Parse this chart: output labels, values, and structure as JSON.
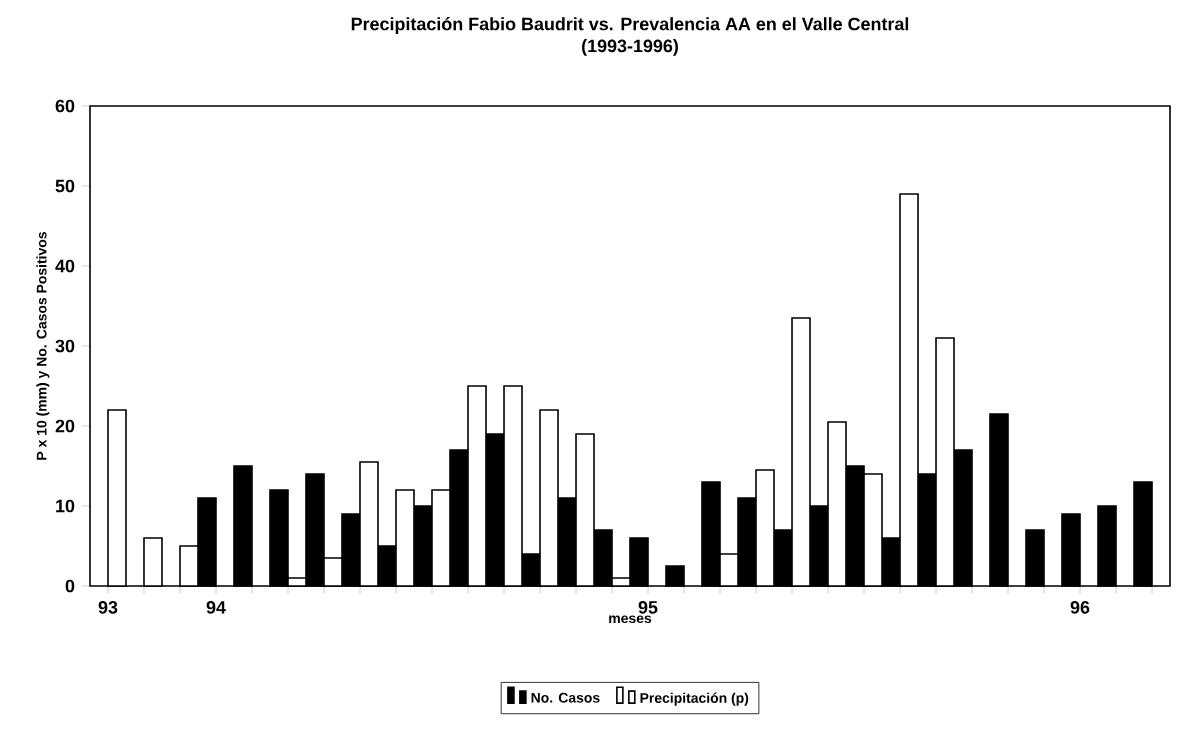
{
  "chart_data": {
    "type": "bar",
    "title": "Precipitación Fabio Baudrit vs. Prevalencia AA en el Valle Central",
    "subtitle": "(1993-1996)",
    "xlabel": "meses",
    "ylabel": "P x 10 (mm) y No. Casos Positivos",
    "categories": [
      "93",
      null,
      null,
      "94",
      null,
      null,
      null,
      null,
      null,
      null,
      null,
      null,
      null,
      null,
      null,
      "95",
      null,
      null,
      null,
      null,
      null,
      null,
      null,
      null,
      null,
      null,
      null,
      "96",
      null,
      null
    ],
    "series": [
      {
        "name": "No. Casos",
        "color": "#000000",
        "values": [
          null,
          null,
          null,
          11,
          15,
          12,
          14,
          9,
          5,
          10,
          17,
          19,
          4,
          11,
          7,
          6,
          2.5,
          13,
          11,
          7,
          10,
          15,
          6,
          14,
          17,
          21.5,
          7,
          9,
          10,
          13
        ]
      },
      {
        "name": "Precipitación (p)",
        "color": "#ffffff",
        "values": [
          22,
          6,
          5,
          null,
          null,
          1,
          3.5,
          15.5,
          12,
          12,
          25,
          25,
          22,
          19,
          1,
          null,
          null,
          4,
          14.5,
          33.5,
          20.5,
          14,
          49,
          31,
          null,
          null,
          null,
          null,
          null,
          null
        ]
      }
    ],
    "ylim": [
      0,
      60
    ],
    "yticks": [
      0,
      10,
      20,
      30,
      40,
      50,
      60
    ],
    "grid": false,
    "legend": "bottom"
  }
}
